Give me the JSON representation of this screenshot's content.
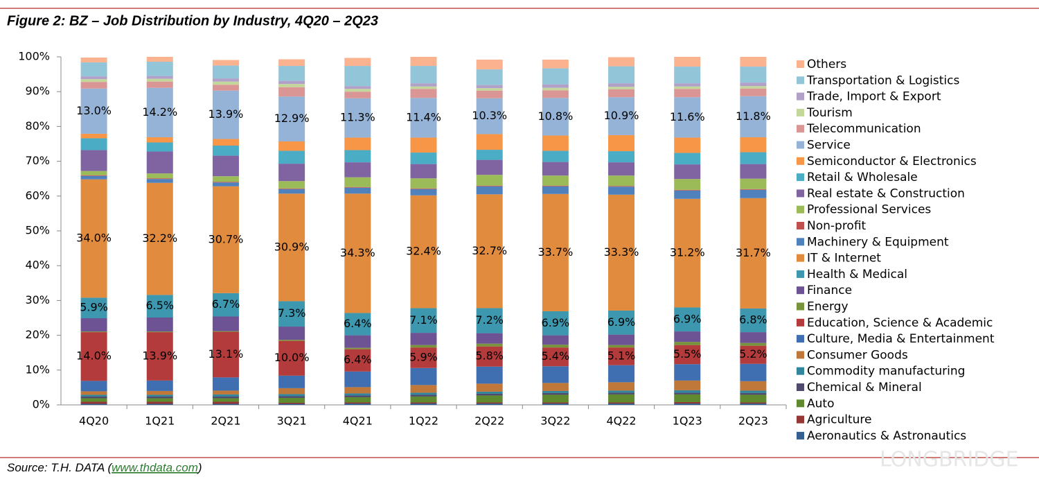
{
  "chart_data": {
    "type": "stacked_bar",
    "title": "Figure 2: BZ – Job Distribution by Industry, 4Q20 – 2Q23",
    "categories": [
      "4Q20",
      "1Q21",
      "2Q21",
      "3Q21",
      "4Q21",
      "1Q22",
      "2Q22",
      "3Q22",
      "4Q22",
      "1Q23",
      "2Q23"
    ],
    "ylim": [
      0,
      100
    ],
    "yticks": [
      {
        "value": 0,
        "label": "0%"
      },
      {
        "value": 10,
        "label": "10%"
      },
      {
        "value": 20,
        "label": "20%"
      },
      {
        "value": 30,
        "label": "30%"
      },
      {
        "value": 40,
        "label": "40%"
      },
      {
        "value": 50,
        "label": "50%"
      },
      {
        "value": 60,
        "label": "60%"
      },
      {
        "value": 70,
        "label": "70%"
      },
      {
        "value": 80,
        "label": "80%"
      },
      {
        "value": 90,
        "label": "90%"
      },
      {
        "value": 100,
        "label": "100%"
      }
    ],
    "grid": false,
    "legend": "right",
    "series": [
      {
        "name": "Aeronautics & Astronautics",
        "color": "#365f91",
        "values": [
          0.3,
          0.3,
          0.3,
          0.3,
          0.4,
          0.4,
          0.4,
          0.4,
          0.4,
          0.4,
          0.4
        ]
      },
      {
        "name": "Agriculture",
        "color": "#953735",
        "values": [
          0.6,
          0.6,
          0.6,
          0.3,
          0.3,
          0.3,
          0.3,
          0.3,
          0.3,
          0.4,
          0.3
        ]
      },
      {
        "name": "Auto",
        "color": "#5f8a2f",
        "values": [
          1.0,
          1.0,
          1.0,
          1.4,
          1.5,
          1.7,
          2.0,
          2.2,
          2.3,
          2.2,
          2.2
        ]
      },
      {
        "name": "Chemical & Mineral",
        "color": "#4f4a6e",
        "values": [
          0.5,
          0.5,
          0.5,
          0.5,
          0.5,
          0.5,
          0.5,
          0.5,
          0.5,
          0.5,
          0.5
        ]
      },
      {
        "name": "Commodity manufacturing",
        "color": "#31859c",
        "values": [
          0.5,
          0.5,
          0.6,
          0.6,
          0.6,
          0.6,
          0.6,
          0.6,
          0.6,
          0.7,
          0.7
        ]
      },
      {
        "name": "Consumer Goods",
        "color": "#c0773a",
        "values": [
          1.0,
          1.1,
          1.1,
          1.7,
          1.8,
          2.2,
          2.3,
          2.3,
          2.4,
          2.8,
          2.7
        ]
      },
      {
        "name": "Culture, Media & Entertainment",
        "color": "#3f6fb0",
        "values": [
          3.0,
          3.0,
          3.8,
          3.6,
          4.5,
          4.9,
          4.9,
          4.8,
          4.9,
          4.7,
          5.0
        ]
      },
      {
        "name": "Education, Science & Academic",
        "color": "#b33b3b",
        "values": [
          14.0,
          13.9,
          13.1,
          10.0,
          6.4,
          5.9,
          5.8,
          5.4,
          5.1,
          5.5,
          5.2
        ],
        "value_labels": [
          "14.0%",
          "13.9%",
          "13.1%",
          "10.0%",
          "6.4%",
          "5.9%",
          "5.8%",
          "5.4%",
          "5.1%",
          "5.5%",
          "5.2%"
        ]
      },
      {
        "name": "Energy",
        "color": "#77933c",
        "values": [
          0.2,
          0.2,
          0.2,
          0.3,
          0.4,
          0.7,
          0.8,
          0.8,
          0.7,
          0.9,
          0.8
        ]
      },
      {
        "name": "Finance",
        "color": "#6e5394",
        "values": [
          3.8,
          4.0,
          4.2,
          3.8,
          3.6,
          3.5,
          3.0,
          2.7,
          3.0,
          3.0,
          3.1
        ]
      },
      {
        "name": "Health & Medical",
        "color": "#3d97ae",
        "values": [
          5.9,
          6.5,
          6.7,
          7.3,
          6.4,
          7.1,
          7.2,
          6.9,
          6.9,
          6.9,
          6.8
        ],
        "value_labels": [
          "5.9%",
          "6.5%",
          "6.7%",
          "7.3%",
          "6.4%",
          "7.1%",
          "7.2%",
          "6.9%",
          "6.9%",
          "6.9%",
          "6.8%"
        ]
      },
      {
        "name": "IT & Internet",
        "color": "#e08b3e",
        "values": [
          34.0,
          32.2,
          30.7,
          30.9,
          34.3,
          32.4,
          32.7,
          33.7,
          33.3,
          31.2,
          31.7
        ],
        "value_labels": [
          "34.0%",
          "32.2%",
          "30.7%",
          "30.9%",
          "34.3%",
          "32.4%",
          "32.7%",
          "33.7%",
          "33.3%",
          "31.2%",
          "31.7%"
        ]
      },
      {
        "name": "Machinery & Equipment",
        "color": "#4f81bd",
        "values": [
          1.0,
          1.1,
          1.1,
          1.3,
          1.7,
          1.8,
          2.3,
          2.2,
          2.3,
          2.4,
          2.4
        ]
      },
      {
        "name": "Non-profit",
        "color": "#c0504d",
        "values": [
          0.2,
          0.2,
          0.2,
          0.2,
          0.2,
          0.2,
          0.2,
          0.2,
          0.2,
          0.2,
          0.2
        ]
      },
      {
        "name": "Professional Services",
        "color": "#9bbb59",
        "values": [
          1.2,
          1.4,
          1.6,
          2.1,
          2.8,
          2.9,
          3.1,
          2.9,
          3.0,
          3.1,
          3.0
        ]
      },
      {
        "name": "Real estate & Construction",
        "color": "#8064a2",
        "values": [
          6.0,
          6.3,
          5.9,
          5.0,
          4.3,
          4.1,
          4.3,
          3.9,
          3.8,
          4.2,
          4.2
        ]
      },
      {
        "name": "Retail & Wholesale",
        "color": "#4bacc6",
        "values": [
          3.4,
          2.6,
          2.9,
          3.7,
          3.5,
          3.3,
          2.9,
          3.2,
          3.2,
          3.3,
          3.4
        ]
      },
      {
        "name": "Semiconductor & Electronics",
        "color": "#f79646",
        "values": [
          1.3,
          1.5,
          1.9,
          2.7,
          3.6,
          4.3,
          4.5,
          4.4,
          4.6,
          4.4,
          4.3
        ]
      },
      {
        "name": "Service",
        "color": "#95b3d7",
        "values": [
          13.0,
          14.2,
          13.9,
          12.9,
          11.3,
          11.4,
          10.3,
          10.8,
          10.9,
          11.6,
          11.8
        ],
        "value_labels": [
          "13.0%",
          "14.2%",
          "13.9%",
          "12.9%",
          "11.3%",
          "11.4%",
          "10.3%",
          "10.8%",
          "10.9%",
          "11.6%",
          "11.8%"
        ]
      },
      {
        "name": "Telecommunication",
        "color": "#d99694",
        "values": [
          1.9,
          1.8,
          1.7,
          2.7,
          1.9,
          2.6,
          2.2,
          2.2,
          2.3,
          2.4,
          2.2
        ]
      },
      {
        "name": "Tourism",
        "color": "#c4d79b",
        "values": [
          0.8,
          0.8,
          0.9,
          0.9,
          0.8,
          0.7,
          0.7,
          0.7,
          0.7,
          0.7,
          0.7
        ]
      },
      {
        "name": "Trade, Import & Export",
        "color": "#b1a0c7",
        "values": [
          0.8,
          0.8,
          0.9,
          0.9,
          0.8,
          0.9,
          0.9,
          1.0,
          1.0,
          0.9,
          1.0
        ]
      },
      {
        "name": "Transportation & Logistics",
        "color": "#93c5d9",
        "values": [
          4.0,
          4.1,
          3.7,
          4.3,
          5.8,
          5.0,
          4.5,
          4.6,
          4.9,
          4.8,
          4.6
        ]
      },
      {
        "name": "Others",
        "color": "#fab28f",
        "values": [
          1.4,
          1.4,
          1.6,
          1.9,
          2.3,
          2.6,
          2.8,
          2.5,
          2.6,
          2.8,
          2.8
        ]
      }
    ],
    "source": {
      "text": "Source: T.H. DATA (",
      "link": "www.thdata.com",
      "end": ")"
    },
    "watermark": "LONGBRIDGE"
  }
}
